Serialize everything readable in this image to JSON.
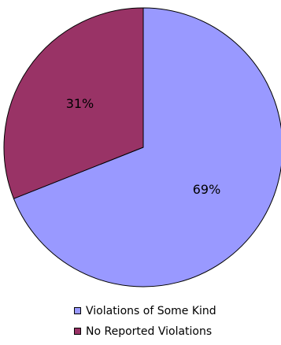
{
  "chart_data": {
    "type": "pie",
    "slices": [
      {
        "label": "Violations of Some Kind",
        "value": 69,
        "display": "69%",
        "color": "#9999ff"
      },
      {
        "label": "No Reported Violations",
        "value": 31,
        "display": "31%",
        "color": "#993366"
      }
    ],
    "legend_position": "bottom"
  }
}
